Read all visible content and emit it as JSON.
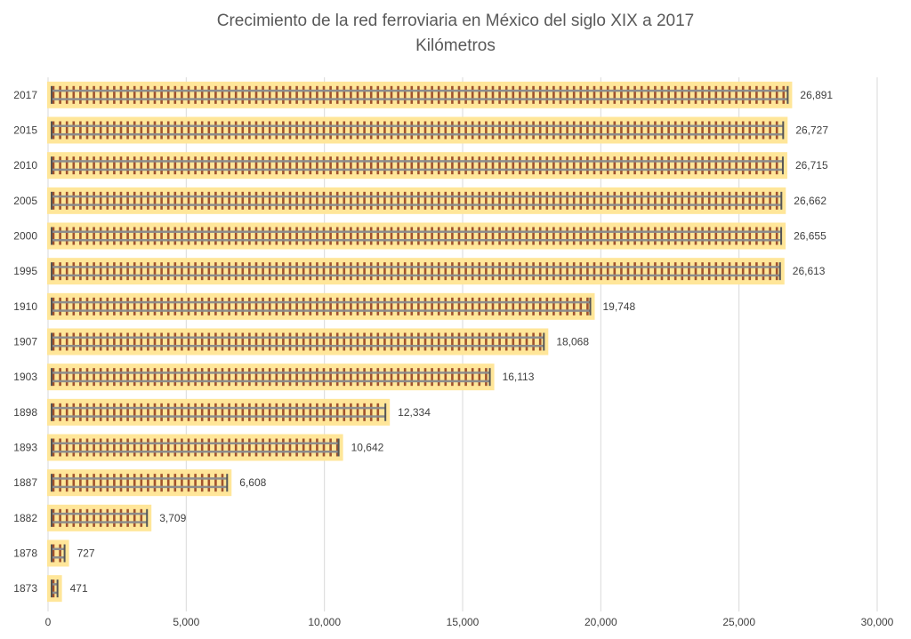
{
  "chart_data": {
    "type": "bar",
    "orientation": "horizontal",
    "title": "Crecimiento de la red ferroviaria en México del siglo XIX a 2017",
    "subtitle": "Kilómetros",
    "xlabel": "",
    "ylabel": "",
    "xlim": [
      0,
      30000
    ],
    "x_ticks": [
      0,
      5000,
      10000,
      15000,
      20000,
      25000,
      30000
    ],
    "x_tick_labels": [
      "0",
      "5,000",
      "10,000",
      "15,000",
      "20,000",
      "25,000",
      "30,000"
    ],
    "grid": true,
    "categories": [
      "2017",
      "2015",
      "2010",
      "2005",
      "2000",
      "1995",
      "1910",
      "1907",
      "1903",
      "1898",
      "1893",
      "1887",
      "1882",
      "1878",
      "1873"
    ],
    "values": [
      26891,
      26727,
      26715,
      26662,
      26655,
      26613,
      19748,
      18068,
      16113,
      12334,
      10642,
      6608,
      3709,
      727,
      471
    ],
    "data_labels": [
      "26,891",
      "26,727",
      "26,715",
      "26,662",
      "26,655",
      "26,613",
      "19,748",
      "18,068",
      "16,113",
      "12,334",
      "10,642",
      "6,608",
      "3,709",
      "727",
      "471"
    ],
    "colors": {
      "bar_background": "#FFE699",
      "rail": "#8C8C8C",
      "tie": "#A0522D",
      "grid": "#D9D9D9"
    }
  }
}
